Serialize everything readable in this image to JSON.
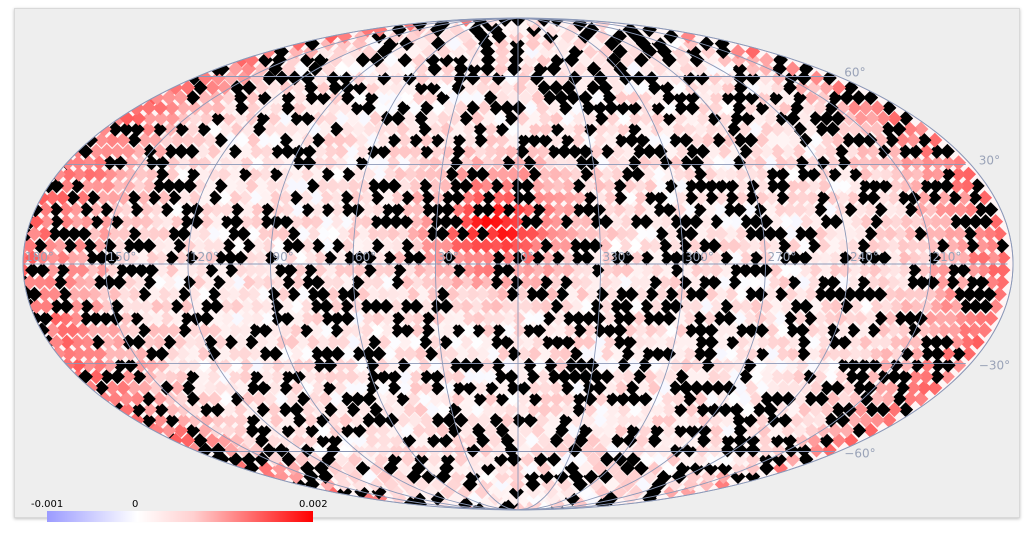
{
  "map": {
    "projection": "mollweide",
    "background_color": "#eeeeee",
    "missing_color": "#000000",
    "graticule_color": "#8c99b8",
    "longitude_labels": [
      "180°",
      "150°",
      "120°",
      "90°",
      "60°",
      "30°",
      "0°",
      "330°",
      "300°",
      "270°",
      "240°",
      "210°"
    ],
    "latitude_labels": [
      "60°",
      "30°",
      "−30°",
      "−60°"
    ]
  },
  "colorbar": {
    "min_label": "-0.001",
    "mid_label": "0",
    "max_label": "0.002",
    "low_color": "#9b9bff",
    "zero_color": "#ffffff",
    "high_color": "#ff0000"
  }
}
